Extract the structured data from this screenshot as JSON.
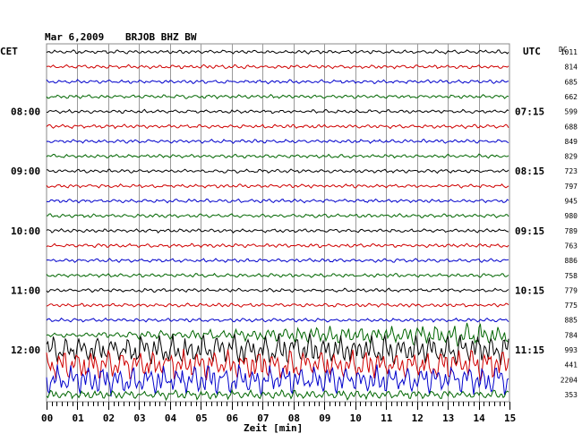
{
  "header": {
    "date": "Mar 6,2009",
    "station": "BRJOB BHZ BW",
    "left_tz": "CET",
    "right_tz": "UTC",
    "right_col_header": "DC"
  },
  "chart_data": {
    "type": "line",
    "xlabel": "Zeit [min]",
    "x_ticks": [
      "00",
      "01",
      "02",
      "03",
      "04",
      "05",
      "06",
      "07",
      "08",
      "09",
      "10",
      "11",
      "12",
      "13",
      "14",
      "15"
    ],
    "xlim": [
      0,
      15
    ],
    "grid": true,
    "trace_colors": [
      "#000000",
      "#d00000",
      "#0000cc",
      "#006600"
    ],
    "left_time_labels": [
      {
        "trace": 4,
        "text": "08:00"
      },
      {
        "trace": 8,
        "text": "09:00"
      },
      {
        "trace": 12,
        "text": "10:00"
      },
      {
        "trace": 16,
        "text": "11:00"
      },
      {
        "trace": 20,
        "text": "12:00"
      }
    ],
    "right_time_labels": [
      {
        "trace": 4,
        "text": "07:15"
      },
      {
        "trace": 8,
        "text": "08:15"
      },
      {
        "trace": 12,
        "text": "09:15"
      },
      {
        "trace": 16,
        "text": "10:15"
      },
      {
        "trace": 20,
        "text": "11:15"
      }
    ],
    "dc_values": [
      "1011",
      "814",
      "685",
      "662",
      "599",
      "688",
      "849",
      "829",
      "723",
      "797",
      "945",
      "980",
      "789",
      "763",
      "886",
      "758",
      "779",
      "775",
      "885",
      "784",
      "993",
      "441",
      "2204",
      "353"
    ],
    "trace_activity": [
      "quiet",
      "quiet",
      "quiet",
      "quiet",
      "quiet",
      "quiet",
      "quiet",
      "quiet",
      "quiet",
      "quiet",
      "quiet",
      "quiet",
      "quiet",
      "quiet",
      "quiet",
      "quiet",
      "quiet",
      "quiet",
      "quiet",
      "rising",
      "strong",
      "strong",
      "strong",
      "moderate"
    ]
  }
}
